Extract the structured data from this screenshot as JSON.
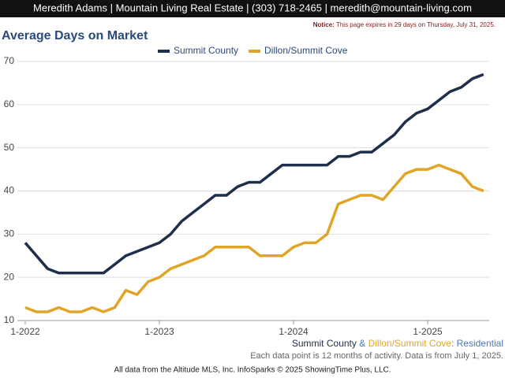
{
  "header": {
    "contact": "Meredith Adams | Mountain Living Real Estate | (303) 718-2465 | meredith@mountain-living.com"
  },
  "notice": {
    "label": "Notice:",
    "text": "This page expires in 29 days on Thursday, July 31, 2025."
  },
  "chart_data": {
    "type": "line",
    "title": "Average Days on Market",
    "categories": [
      "1-2022",
      null,
      null,
      null,
      null,
      null,
      null,
      null,
      null,
      null,
      null,
      null,
      "1-2023",
      null,
      null,
      null,
      null,
      null,
      null,
      null,
      null,
      null,
      null,
      null,
      "1-2024",
      null,
      null,
      null,
      null,
      null,
      null,
      null,
      null,
      null,
      null,
      null,
      "1-2025",
      null,
      null,
      null,
      null,
      null
    ],
    "series": [
      {
        "name": "Summit County",
        "color": "#1f2e4a",
        "values": [
          28,
          25,
          22,
          21,
          21,
          21,
          21,
          21,
          23,
          25,
          26,
          27,
          28,
          30,
          33,
          35,
          37,
          39,
          39,
          41,
          42,
          42,
          44,
          46,
          46,
          46,
          46,
          46,
          48,
          48,
          49,
          49,
          51,
          53,
          56,
          58,
          59,
          61,
          63,
          64,
          66,
          67
        ]
      },
      {
        "name": "Dillon/Summit Cove",
        "color": "#e0a526",
        "values": [
          13,
          12,
          12,
          13,
          12,
          12,
          13,
          12,
          13,
          17,
          16,
          19,
          20,
          22,
          23,
          24,
          25,
          27,
          27,
          27,
          27,
          25,
          25,
          25,
          27,
          28,
          28,
          30,
          37,
          38,
          39,
          39,
          38,
          41,
          44,
          45,
          45,
          46,
          45,
          44,
          41,
          40
        ]
      }
    ],
    "ylim": [
      10,
      70
    ],
    "yticks": [
      10,
      20,
      30,
      40,
      50,
      60,
      70
    ],
    "grid": true,
    "legend": "top"
  },
  "footer": {
    "area_a": "Summit County",
    "amp": "&",
    "area_b": "Dillon/Summit Cove",
    "kind": ": Residential",
    "note": "Each data point is 12 months of activity. Data is from July 1, 2025.",
    "source": "All data from the Altitude MLS, Inc. InfoSparks © 2025 ShowingTime Plus, LLC."
  }
}
